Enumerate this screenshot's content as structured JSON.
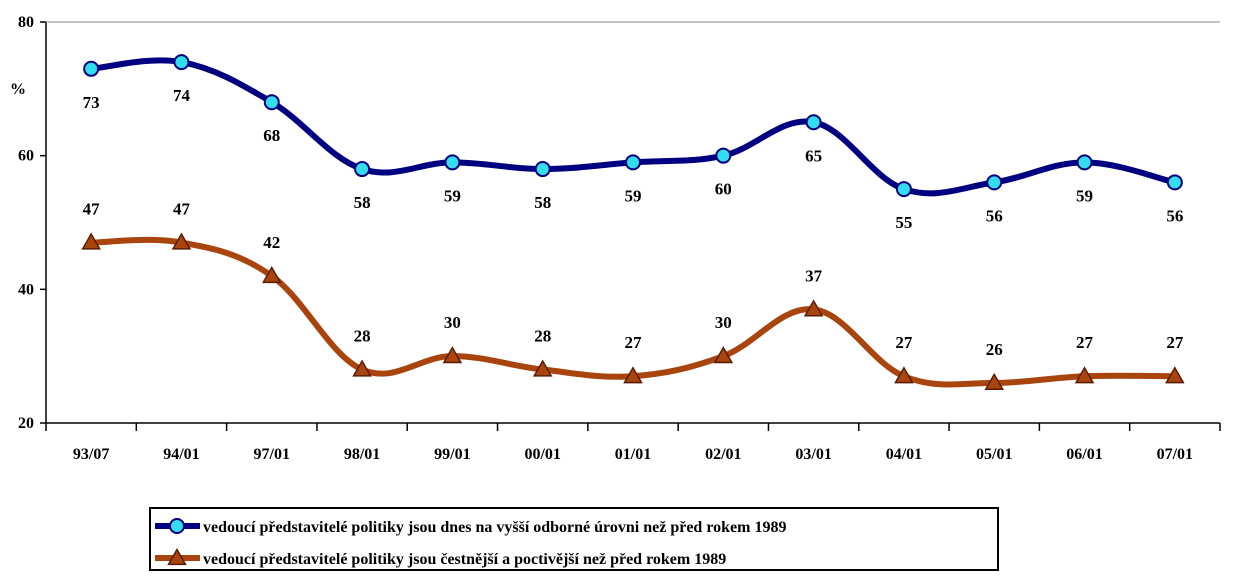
{
  "chart_data": {
    "type": "line",
    "ylabel": "%",
    "ylim": [
      20,
      80
    ],
    "yticks": [
      20,
      40,
      60,
      80
    ],
    "categories": [
      "93/07",
      "94/01",
      "97/01",
      "98/01",
      "99/01",
      "00/01",
      "01/01",
      "02/01",
      "03/01",
      "04/01",
      "05/01",
      "06/01",
      "07/01"
    ],
    "series": [
      {
        "name": "vedoucí představitelé politiky jsou dnes na vyšší odborné úrovni než před rokem 1989",
        "values": [
          73,
          74,
          68,
          58,
          59,
          58,
          59,
          60,
          65,
          55,
          56,
          59,
          56
        ],
        "color": "#000080",
        "marker": "circle",
        "marker_fill": "#33ddee",
        "label_position": "below"
      },
      {
        "name": "vedoucí představitelé politiky jsou čestnější a poctivější než před rokem 1989",
        "values": [
          47,
          47,
          42,
          28,
          30,
          28,
          27,
          30,
          37,
          27,
          26,
          27,
          27
        ],
        "color": "#a8440c",
        "marker": "triangle",
        "marker_fill": "#a8440c",
        "label_position": "above"
      }
    ],
    "grid": false,
    "legend_position": "bottom"
  }
}
